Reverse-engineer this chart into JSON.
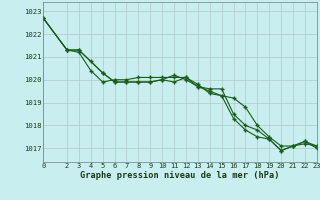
{
  "title": "Graphe pression niveau de la mer (hPa)",
  "background_color": "#c8eef0",
  "grid_color": "#b0c8c8",
  "line_color": "#1a5c1a",
  "xlim": [
    0,
    23
  ],
  "ylim": [
    1016.4,
    1023.4
  ],
  "yticks": [
    1017,
    1018,
    1019,
    1020,
    1021,
    1022,
    1023
  ],
  "xticks": [
    0,
    2,
    3,
    4,
    5,
    6,
    7,
    8,
    9,
    10,
    11,
    12,
    13,
    14,
    15,
    16,
    17,
    18,
    19,
    20,
    21,
    22,
    23
  ],
  "series": [
    {
      "x": [
        0,
        2,
        3,
        4,
        5,
        6,
        7,
        8,
        9,
        10,
        11,
        12,
        13,
        14,
        15,
        16,
        17,
        18,
        19,
        20,
        21,
        22,
        23
      ],
      "y": [
        1022.7,
        1021.3,
        1021.3,
        1020.8,
        1020.3,
        1019.9,
        1019.9,
        1019.9,
        1019.9,
        1020.0,
        1019.9,
        1020.1,
        1019.7,
        1019.6,
        1019.6,
        1018.5,
        1018.0,
        1017.8,
        1017.4,
        1016.9,
        1017.1,
        1017.3,
        1017.1
      ]
    },
    {
      "x": [
        0,
        2,
        3,
        4,
        5,
        6,
        7,
        8,
        9,
        10,
        11,
        12,
        13,
        14,
        15,
        16,
        17,
        18,
        19,
        20,
        21,
        22,
        23
      ],
      "y": [
        1022.7,
        1021.3,
        1021.2,
        1020.4,
        1019.9,
        1020.0,
        1020.0,
        1020.1,
        1020.1,
        1020.1,
        1020.1,
        1020.1,
        1019.8,
        1019.4,
        1019.3,
        1019.2,
        1018.8,
        1018.0,
        1017.5,
        1017.1,
        1017.1,
        1017.3,
        1017.0
      ]
    },
    {
      "x": [
        0,
        2,
        3,
        5,
        6,
        7,
        8,
        9,
        10,
        11,
        12,
        13,
        14,
        15,
        16,
        17,
        18,
        19,
        20,
        21,
        22,
        23
      ],
      "y": [
        1022.7,
        1021.3,
        1021.3,
        1020.3,
        1019.9,
        1019.9,
        1019.9,
        1019.9,
        1020.0,
        1020.2,
        1020.0,
        1019.7,
        1019.5,
        1019.3,
        1018.3,
        1017.8,
        1017.5,
        1017.4,
        1016.9,
        1017.1,
        1017.2,
        1017.1
      ]
    }
  ]
}
